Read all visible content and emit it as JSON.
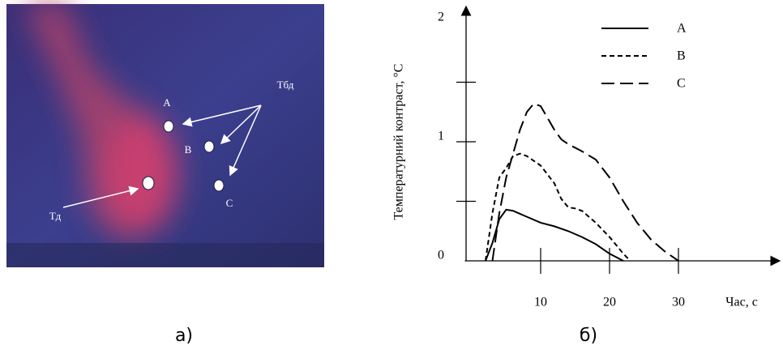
{
  "image": {
    "labels": [
      "A",
      "B",
      "C",
      "Тбд",
      "Тд"
    ],
    "caption": "а)"
  },
  "chart_data": {
    "type": "line",
    "ylabel": "Температурний контраст, °С",
    "xlabel": "Час, с",
    "caption": "б)",
    "xlim": [
      -1,
      44
    ],
    "xticks": [
      10,
      20,
      30
    ],
    "ylim": [
      0,
      2.1
    ],
    "yticks": [
      0,
      1,
      2
    ],
    "ytick_marks": [
      0.5,
      1,
      1.5
    ],
    "series": [
      {
        "name": "A",
        "color": "#000000",
        "line_style": "solid",
        "x": [
          2,
          3,
          4,
          5,
          6,
          8,
          10,
          12,
          14,
          16,
          18,
          20,
          22
        ],
        "values": [
          0,
          0.15,
          0.35,
          0.43,
          0.42,
          0.37,
          0.32,
          0.29,
          0.25,
          0.2,
          0.14,
          0.06,
          0
        ]
      },
      {
        "name": "B",
        "color": "#000000",
        "line_style": "dashed",
        "x": [
          2,
          3,
          4,
          5,
          6,
          7,
          8,
          10,
          12,
          13,
          14,
          15,
          16,
          18,
          20,
          22,
          23
        ],
        "values": [
          0,
          0.4,
          0.7,
          0.78,
          0.88,
          0.9,
          0.88,
          0.8,
          0.65,
          0.52,
          0.45,
          0.44,
          0.42,
          0.32,
          0.2,
          0.06,
          0
        ]
      },
      {
        "name": "C",
        "color": "#000000",
        "line_style": "long-dashed",
        "x": [
          3,
          4,
          5,
          6,
          7,
          8,
          9,
          10,
          11,
          12,
          13,
          14,
          16,
          18,
          20,
          22,
          24,
          26,
          28,
          30
        ],
        "values": [
          0,
          0.4,
          0.7,
          0.9,
          1.1,
          1.25,
          1.32,
          1.3,
          1.2,
          1.1,
          1.02,
          0.98,
          0.92,
          0.85,
          0.7,
          0.5,
          0.32,
          0.18,
          0.08,
          0
        ]
      }
    ]
  }
}
